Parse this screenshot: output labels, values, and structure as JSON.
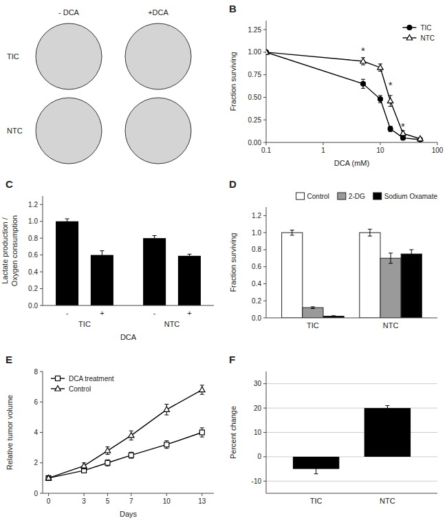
{
  "chart_data": [
    {
      "type": "image",
      "annotations": [
        "- DCA",
        "+DCA",
        "TIC",
        "NTC"
      ]
    },
    {
      "type": "line",
      "title": "B",
      "xlabel": "DCA (mM)",
      "ylabel": "Fraction surviving",
      "log": "x",
      "x": [
        0.1,
        5,
        10,
        15,
        25,
        50
      ],
      "series": [
        {
          "name": "TIC",
          "color": "black",
          "marker": "circle",
          "values": [
            1.0,
            0.65,
            0.48,
            0.15,
            0.05,
            0.03
          ],
          "errors": [
            0.02,
            0.05,
            0.04,
            0.03,
            0.02,
            0.01
          ]
        },
        {
          "name": "NTC",
          "color": "black",
          "marker": "triangle-open",
          "values": [
            1.0,
            0.9,
            0.83,
            0.46,
            0.1,
            0.04
          ],
          "errors": [
            0.02,
            0.04,
            0.04,
            0.06,
            0.03,
            0.01
          ]
        }
      ],
      "xlim": [
        0.1,
        100
      ],
      "xticks": [
        0.1,
        1,
        10,
        100
      ],
      "ylim": [
        0.0,
        1.35
      ],
      "yticks": [
        {
          "value": 0.0,
          "label": "0.00"
        },
        0.25,
        {
          "value": 0.5,
          "label": "0.50"
        },
        0.75,
        {
          "value": 1.0,
          "label": "1.00"
        },
        1.25
      ],
      "annotations": [
        {
          "text": "*",
          "x": 5,
          "y": 1.02
        },
        {
          "text": "*",
          "x": 15,
          "y": 0.64
        },
        {
          "text": "*",
          "x": 25,
          "y": 0.18
        }
      ],
      "legend": "top-right"
    },
    {
      "type": "bar",
      "title": "C",
      "xlabel": "DCA",
      "ylabel": "Lactate production /\nOxygen consumption",
      "categories": [
        "-",
        "+",
        "-",
        "+"
      ],
      "group_labels": [
        "TIC",
        "NTC"
      ],
      "values": [
        1.0,
        0.6,
        0.8,
        0.59
      ],
      "errors": [
        0.03,
        0.05,
        0.03,
        0.02
      ],
      "color": "black",
      "ylim": [
        0,
        1.3
      ],
      "yticks": [
        {
          "value": 0,
          "label": "0.0"
        },
        0.2,
        0.4,
        0.6,
        0.8,
        {
          "value": 1.0,
          "label": "1.0"
        },
        1.2
      ]
    },
    {
      "type": "bar",
      "title": "D",
      "ylabel": "Fraction surviving",
      "categories": [
        "TIC",
        "NTC"
      ],
      "series": [
        {
          "name": "Control",
          "color": "white",
          "values": [
            1.0,
            1.0
          ],
          "errors": [
            0.03,
            0.04
          ]
        },
        {
          "name": "2-DG",
          "color": "#9a9a9a",
          "values": [
            0.12,
            0.7
          ],
          "errors": [
            0.01,
            0.06
          ]
        },
        {
          "name": "Sodium Oxamate",
          "color": "black",
          "values": [
            0.02,
            0.75
          ],
          "errors": [
            0.005,
            0.05
          ]
        }
      ],
      "ylim": [
        0,
        1.3
      ],
      "yticks": [
        {
          "value": 0,
          "label": "0.0"
        },
        0.2,
        0.4,
        0.6,
        0.8,
        {
          "value": 1.0,
          "label": "1.0"
        },
        1.2
      ],
      "legend": "top-right"
    },
    {
      "type": "line",
      "title": "E",
      "xlabel": "Days",
      "ylabel": "Relative tumor volume",
      "x": [
        0,
        3,
        5,
        7,
        10,
        13
      ],
      "series": [
        {
          "name": "DCA treatment",
          "color": "black",
          "marker": "square-open",
          "values": [
            1.0,
            1.5,
            2.0,
            2.5,
            3.2,
            4.0
          ],
          "errors": [
            0.1,
            0.15,
            0.2,
            0.2,
            0.25,
            0.3
          ]
        },
        {
          "name": "Control",
          "color": "black",
          "marker": "triangle-open",
          "values": [
            1.0,
            1.8,
            2.8,
            3.8,
            5.5,
            6.8
          ],
          "errors": [
            0.1,
            0.2,
            0.25,
            0.3,
            0.35,
            0.3
          ]
        }
      ],
      "xlim": [
        -0.5,
        14
      ],
      "xticks": [
        0,
        3,
        5,
        7,
        10,
        13
      ],
      "ylim": [
        0,
        8
      ],
      "yticks": [
        0,
        2,
        4,
        6,
        8
      ],
      "legend": "top-left"
    },
    {
      "type": "bar",
      "title": "F",
      "ylabel": "Percent change",
      "categories": [
        "TIC",
        "NTC"
      ],
      "values": [
        -5,
        20
      ],
      "errors": [
        2,
        1
      ],
      "color": "black",
      "ylim": [
        -15,
        35
      ],
      "yticks": [
        -10,
        0,
        10,
        20,
        30
      ],
      "grid": true
    }
  ]
}
